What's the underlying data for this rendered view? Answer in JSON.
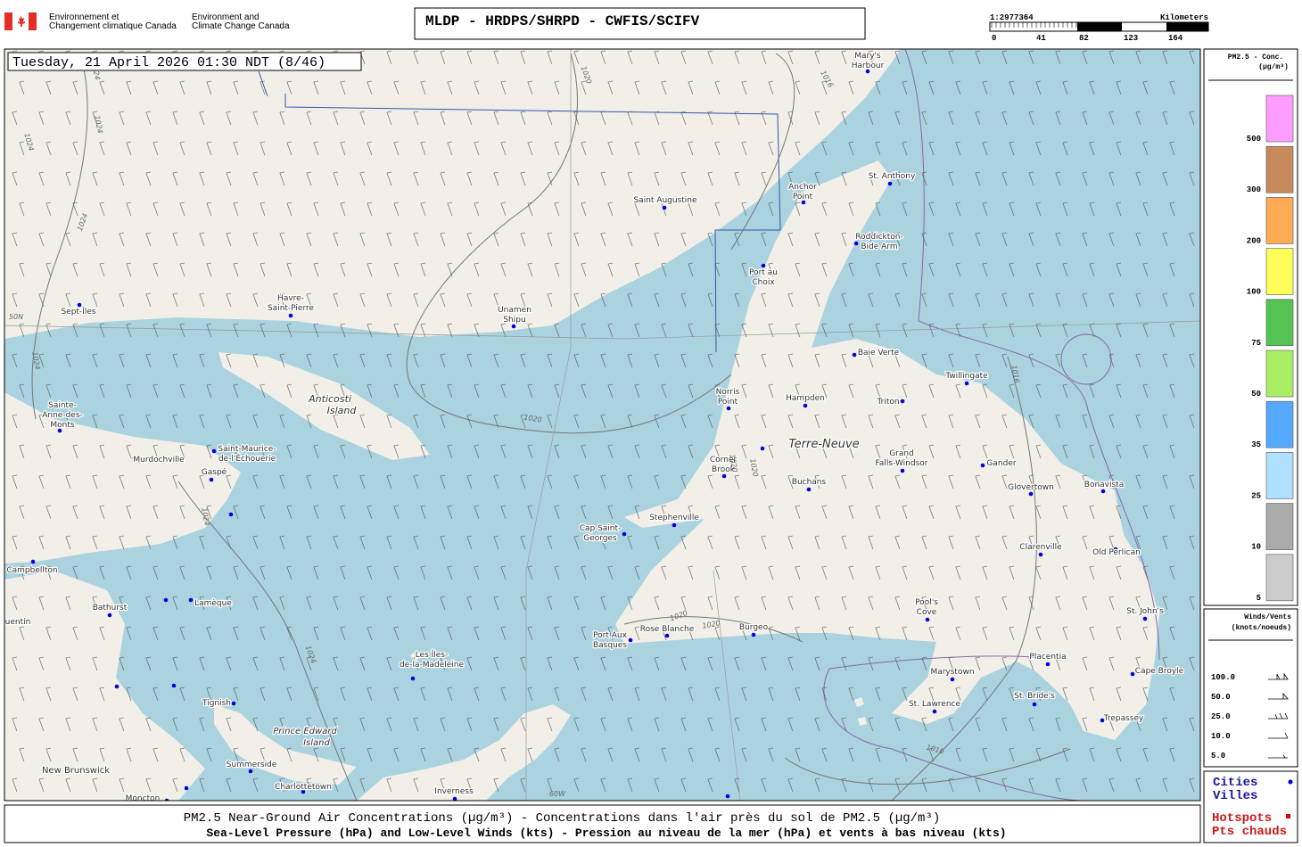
{
  "header": {
    "agency_fr": [
      "Environnement et",
      "Changement climatique Canada"
    ],
    "agency_en": [
      "Environment and",
      "Climate Change Canada"
    ],
    "title": "MLDP - HRDPS/SHRPD - CWFIS/SCIFV",
    "scale": {
      "ratio": "1:2977364",
      "unit": "Kilometers",
      "ticks": [
        "0",
        "41",
        "82",
        "123",
        "164"
      ]
    }
  },
  "map": {
    "timestamp": "Tuesday, 21 April 2026 01:30 NDT (8/46)",
    "regions": [
      [
        "Anticosti",
        "Island"
      ],
      [
        "Terre-Neuve"
      ],
      [
        "Prince Edward",
        "Island"
      ],
      [
        "New Brunswick"
      ],
      [
        "uentin"
      ]
    ],
    "cities": [
      [
        "Mary's",
        "Harbour"
      ],
      [
        "St. Anthony"
      ],
      [
        "Anchor",
        "Point"
      ],
      [
        "Saint Augustine"
      ],
      [
        "Roddickton-",
        "Bide Arm"
      ],
      [
        "Port au",
        "Choix"
      ],
      [
        "Sept-Îles"
      ],
      [
        "Havre-",
        "Saint-Pierre"
      ],
      [
        "Unamen",
        "Shipu"
      ],
      [
        "Baie Verte"
      ],
      [
        "Norris",
        "Point"
      ],
      [
        "Hampden"
      ],
      [
        "Twillingate"
      ],
      [
        "Triton"
      ],
      [
        "Sainte-",
        "Anne-des-",
        "Monts"
      ],
      [
        "Saint-Maurice-",
        "de-l'Échouerie"
      ],
      [
        "Murdochville"
      ],
      [
        "Gaspé"
      ],
      [
        "Corner",
        "Brook"
      ],
      [
        "Grand",
        "Falls-Windsor"
      ],
      [
        "Gander"
      ],
      [
        "Buchans"
      ],
      [
        "Glovertown"
      ],
      [
        "Bonavista"
      ],
      [
        "Stephenville"
      ],
      [
        "Cap Saint-",
        "Georges"
      ],
      [
        "Clarenville"
      ],
      [
        "Old Perlican"
      ],
      [
        "Campbellton"
      ],
      [
        "Lamèque"
      ],
      [
        "Bathurst"
      ],
      [
        "Pool's",
        "Cove"
      ],
      [
        "St. John's"
      ],
      [
        "Port Aux",
        "Basques"
      ],
      [
        "Rose Blanche"
      ],
      [
        "Burgeo"
      ],
      [
        "Placentia"
      ],
      [
        "Les Îles-",
        "de-la-Madeleine"
      ],
      [
        "Marystown"
      ],
      [
        "Cape Broyle"
      ],
      [
        "Tignish"
      ],
      [
        "St. Lawrence"
      ],
      [
        "St. Bride's"
      ],
      [
        "Trepassey"
      ],
      [
        "Summerside"
      ],
      [
        "Charlottetown"
      ],
      [
        "Inverness"
      ],
      [
        "Moncton"
      ]
    ],
    "contour_labels": [
      "1020",
      "1016",
      "1024",
      "1024",
      "1024",
      "1024",
      "1024",
      "1020",
      "1020",
      "1020",
      "1024",
      "1024",
      "1020",
      "1020",
      "1016",
      "1016",
      "50N",
      "60W"
    ]
  },
  "legend": {
    "pm25": {
      "title": "PM2.5 - Conc.",
      "unit": "(µg/m³)",
      "colors": [
        "#ff9cff",
        "#c68a5c",
        "#ffaa55",
        "#ffff5a",
        "#55c455",
        "#aaee66",
        "#55aaff",
        "#b0e0ff",
        "#aaaaaa",
        "#cccccc"
      ],
      "labels": [
        "500",
        "300",
        "200",
        "100",
        "75",
        "50",
        "35",
        "25",
        "10",
        "5"
      ]
    },
    "winds": {
      "title": "Winds/Vents",
      "unit": "(knots/noeuds)",
      "labels": [
        "100.0",
        "50.0",
        "25.0",
        "10.0",
        "5.0"
      ]
    },
    "cities": [
      "Cities",
      "Villes"
    ],
    "hotspots": [
      "Hotspots",
      "Pts chauds"
    ]
  },
  "footer": [
    "PM2.5 Near-Ground Air Concentrations (µg/m³) - Concentrations dans l'air près du sol de PM2.5 (µg/m³)",
    "Sea-Level Pressure (hPa) and Low-Level Winds (kts) - Pression au niveau de la mer (hPa) et vents à bas niveau (kts)"
  ]
}
